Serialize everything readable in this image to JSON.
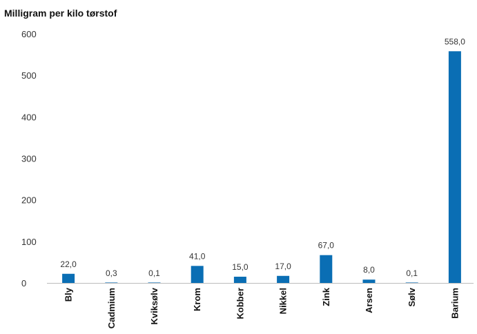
{
  "chart_data": {
    "type": "bar",
    "title": "Milligram per kilo tørstof",
    "categories": [
      "Bly",
      "Cadmium",
      "Kviksølv",
      "Krom",
      "Kobber",
      "Nikkel",
      "Zink",
      "Arsen",
      "Sølv",
      "Barium"
    ],
    "values": [
      22.0,
      0.3,
      0.1,
      41.0,
      15.0,
      17.0,
      67.0,
      8.0,
      0.1,
      558.0
    ],
    "value_labels": [
      "22,0",
      "0,3",
      "0,1",
      "41,0",
      "15,0",
      "17,0",
      "67,0",
      "8,0",
      "0,1",
      "558,0"
    ],
    "yticks": [
      "0",
      "100",
      "200",
      "300",
      "400",
      "500",
      "600"
    ],
    "ylim": [
      0,
      600
    ],
    "grid": false,
    "bar_color": "#0a6eb4"
  }
}
